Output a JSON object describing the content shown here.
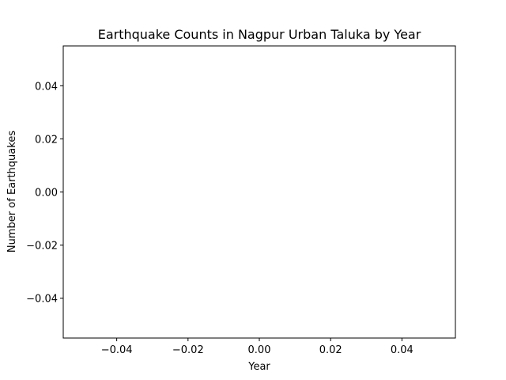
{
  "chart_data": {
    "type": "bar",
    "title": "Earthquake Counts in Nagpur Urban Taluka by Year",
    "xlabel": "Year",
    "ylabel": "Number of Earthquakes",
    "categories": [],
    "values": [],
    "xlim": [
      -0.055,
      0.055
    ],
    "ylim": [
      -0.055,
      0.055
    ],
    "xticks": [
      -0.04,
      -0.02,
      0.0,
      0.02,
      0.04
    ],
    "yticks": [
      -0.04,
      -0.02,
      0.0,
      0.02,
      0.04
    ],
    "xtick_labels": [
      "−0.04",
      "−0.02",
      "0.00",
      "0.02",
      "0.04"
    ],
    "ytick_labels": [
      "−0.04",
      "−0.02",
      "0.00",
      "0.02",
      "0.04"
    ],
    "grid": false,
    "legend": "none",
    "colors": {
      "axis": "#000000",
      "background": "#ffffff"
    }
  }
}
